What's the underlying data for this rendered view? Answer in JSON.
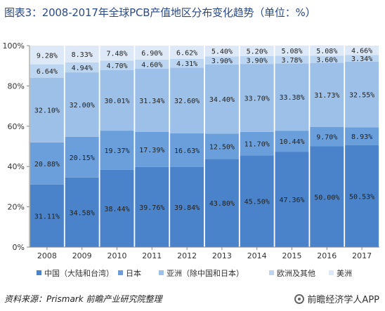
{
  "title": "图表3：2008-2017年全球PCB产值地区分布变化趋势（单位：%）",
  "source": "资料来源：Prismark 前瞻产业研究院整理",
  "brand": "前瞻经济学人APP",
  "chart_data": {
    "type": "bar",
    "stacked": true,
    "categories": [
      "2008",
      "2009",
      "2010",
      "2011",
      "2012",
      "2013",
      "2014",
      "2015",
      "2016",
      "2017"
    ],
    "series": [
      {
        "name": "中国（大陆和台湾）",
        "color": "#4a83c9",
        "values": [
          31.11,
          34.58,
          38.44,
          39.76,
          39.84,
          43.8,
          45.5,
          47.36,
          50.0,
          50.53
        ],
        "labels": [
          "31.11%",
          "34.58%",
          "38.44%",
          "39.76%",
          "39.84%",
          "43.80%",
          "45.50%",
          "47.36%",
          "50.00%",
          "50.53%"
        ]
      },
      {
        "name": "日本",
        "color": "#6a9fdb",
        "values": [
          20.88,
          20.15,
          19.37,
          17.39,
          16.63,
          12.5,
          11.7,
          10.44,
          9.7,
          8.93
        ],
        "labels": [
          "20.88%",
          "20.15%",
          "19.37%",
          "17.39%",
          "16.63%",
          "12.50%",
          "11.70%",
          "10.44%",
          "9.70%",
          "8.93%"
        ]
      },
      {
        "name": "亚洲（除中国和日本）",
        "color": "#9cc0e8",
        "values": [
          32.1,
          32.0,
          30.01,
          31.34,
          32.6,
          34.4,
          33.7,
          33.38,
          31.73,
          32.55
        ],
        "labels": [
          "32.10%",
          "32.00%",
          "30.01%",
          "31.34%",
          "32.60%",
          "34.40%",
          "33.70%",
          "33.38%",
          "31.73%",
          "32.55%"
        ]
      },
      {
        "name": "欧洲及其他",
        "color": "#bcd5f0",
        "values": [
          6.64,
          4.94,
          4.7,
          4.6,
          4.31,
          3.9,
          3.9,
          3.78,
          3.6,
          3.34
        ],
        "labels": [
          "6.64%",
          "4.94%",
          "4.70%",
          "4.60%",
          "4.31%",
          "3.90%",
          "3.90%",
          "3.78%",
          "3.60%",
          "3.34%"
        ]
      },
      {
        "name": "美洲",
        "color": "#dde9f7",
        "values": [
          9.28,
          8.33,
          7.48,
          6.9,
          6.62,
          5.4,
          5.2,
          5.08,
          5.08,
          4.66
        ],
        "labels": [
          "9.28%",
          "8.33%",
          "7.48%",
          "6.90%",
          "6.62%",
          "5.40%",
          "5.20%",
          "5.08%",
          "5.08%",
          "4.66%"
        ]
      }
    ],
    "yaxis": {
      "min": 0,
      "max": 100,
      "ticks": [
        0,
        20,
        40,
        60,
        80,
        100
      ],
      "tick_labels": [
        "0%",
        "20%",
        "40%",
        "60%",
        "80%",
        "100%"
      ]
    },
    "legend_position": "bottom",
    "grid": false
  }
}
